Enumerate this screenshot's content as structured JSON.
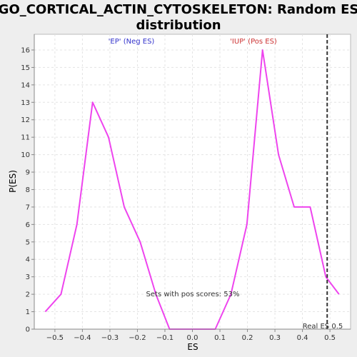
{
  "chart_data": {
    "type": "line",
    "title_lines": [
      "GO_CORTICAL_ACTIN_CYTOSKELETON: Random ES",
      "distribution"
    ],
    "xlabel": "ES",
    "ylabel": "P(ES)",
    "xlim": [
      -0.575,
      0.575
    ],
    "ylim": [
      0,
      16.9
    ],
    "x_ticks": [
      -0.5,
      -0.4,
      -0.3,
      -0.2,
      -0.1,
      0.0,
      0.1,
      0.2,
      0.3,
      0.4,
      0.5
    ],
    "x_tick_labels": [
      "−0.5",
      "−0.4",
      "−0.3",
      "−0.2",
      "−0.1",
      "0.0",
      "0.1",
      "0.2",
      "0.3",
      "0.4",
      "0.5"
    ],
    "y_ticks": [
      0,
      1,
      2,
      3,
      4,
      5,
      6,
      7,
      8,
      9,
      10,
      11,
      12,
      13,
      14,
      15,
      16
    ],
    "grid": true,
    "series": [
      {
        "color": "#ee44ee",
        "x": [
          -0.535,
          -0.478,
          -0.42,
          -0.363,
          -0.305,
          -0.248,
          -0.19,
          -0.133,
          -0.083,
          -0.033,
          0.025,
          0.083,
          0.14,
          0.198,
          0.255,
          0.313,
          0.37,
          0.428,
          0.485,
          0.533
        ],
        "y": [
          1,
          2,
          6,
          13,
          11,
          7,
          5,
          2,
          0,
          0,
          0,
          0,
          2,
          6,
          16,
          10,
          7,
          7,
          3,
          2
        ]
      }
    ],
    "vline": {
      "x": 0.49,
      "label": "Real ES 0.5",
      "color": "#333333"
    },
    "annotations": {
      "neg_label": "'EP' (Neg ES)",
      "neg_color": "#3333cc",
      "pos_label": "'IUP' (Pos ES)",
      "pos_color": "#cc3333",
      "pos_scores_text": "Sets with pos scores: 53%"
    }
  }
}
